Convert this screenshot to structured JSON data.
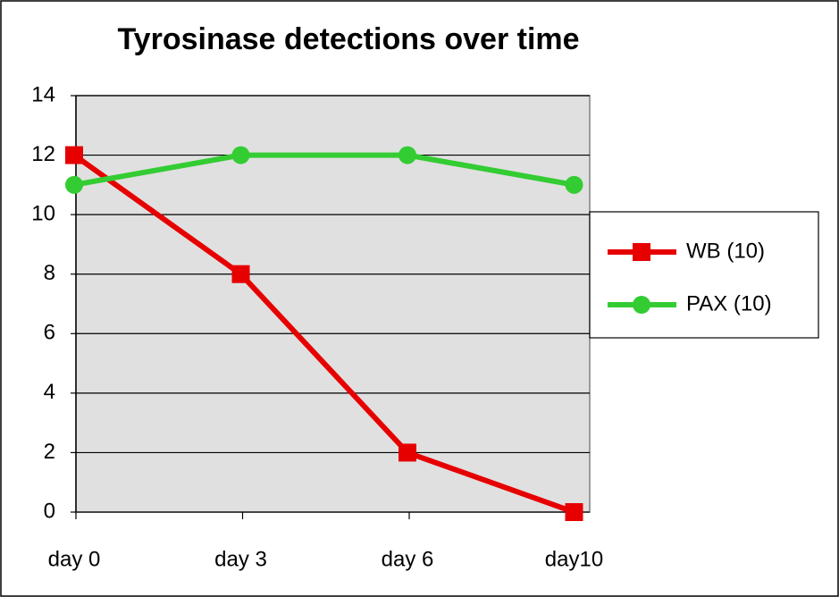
{
  "chart_data": {
    "type": "line",
    "title": "Tyrosinase detections over time",
    "categories": [
      "day 0",
      "day 3",
      "day 6",
      "day10"
    ],
    "series": [
      {
        "name": "WB (10)",
        "color": "#e60000",
        "marker": "square",
        "values": [
          12,
          8,
          2,
          0
        ]
      },
      {
        "name": "PAX (10)",
        "color": "#33cc33",
        "marker": "circle",
        "values": [
          11,
          12,
          12,
          11
        ]
      }
    ],
    "ylim": [
      0,
      14
    ],
    "yticks": [
      0,
      2,
      4,
      6,
      8,
      10,
      12,
      14
    ],
    "grid": true,
    "legend": "right"
  }
}
